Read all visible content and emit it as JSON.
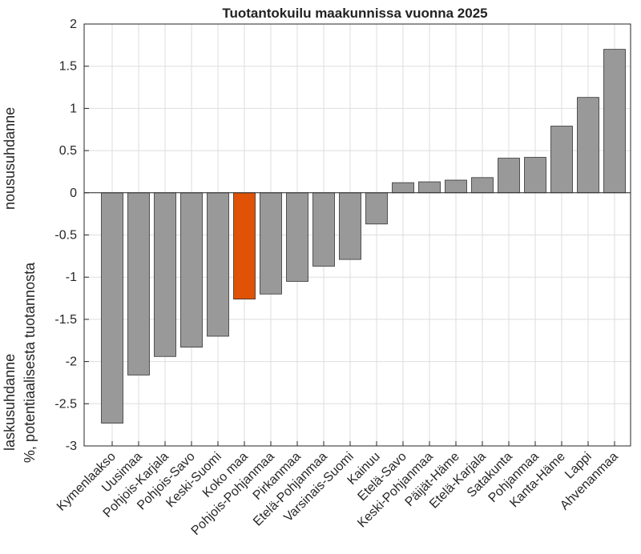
{
  "chart_data": {
    "type": "bar",
    "title": "Tuotantokuilu maakunnissa vuonna 2025",
    "ylabel_lines": [
      "laskusuhdanne",
      "%, potentiaalisesta tuotannosta",
      "noususuhdanne"
    ],
    "ylim": [
      -3,
      2
    ],
    "yticks": [
      2,
      1.5,
      1,
      0.5,
      0,
      -0.5,
      -1,
      -1.5,
      -2,
      -2.5,
      -3
    ],
    "grid": true,
    "categories": [
      "Kymenlaakso",
      "Uusimaa",
      "Pohjois-Karjala",
      "Pohjois-Savo",
      "Keski-Suomi",
      "Koko maa",
      "Pohjois-Pohjanmaa",
      "Pirkanmaa",
      "Etelä-Pohjanmaa",
      "Varsinais-Suomi",
      "Kainuu",
      "Etelä-Savo",
      "Keski-Pohjanmaa",
      "Päijät-Häme",
      "Etelä-Karjala",
      "Satakunta",
      "Pohjanmaa",
      "Kanta-Häme",
      "Lappi",
      "Ahvenanmaa"
    ],
    "values": [
      -2.73,
      -2.16,
      -1.94,
      -1.83,
      -1.7,
      -1.26,
      -1.2,
      -1.05,
      -0.87,
      -0.79,
      -0.37,
      0.12,
      0.13,
      0.15,
      0.18,
      0.41,
      0.42,
      0.79,
      1.13,
      1.7
    ],
    "highlight_category": "Koko maa",
    "colors": {
      "bar": "#999999",
      "highlight": "#e05206",
      "edge": "#333333",
      "grid": "#dedede",
      "axis": "#262626"
    }
  }
}
